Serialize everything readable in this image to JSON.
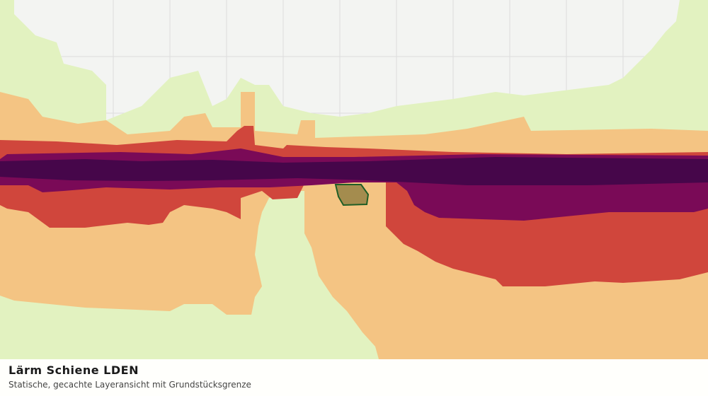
{
  "caption": {
    "title": "Lärm Schiene LDEN",
    "subtitle": "Statische, gecachte Layeransicht mit Grundstücksgrenze"
  }
}
